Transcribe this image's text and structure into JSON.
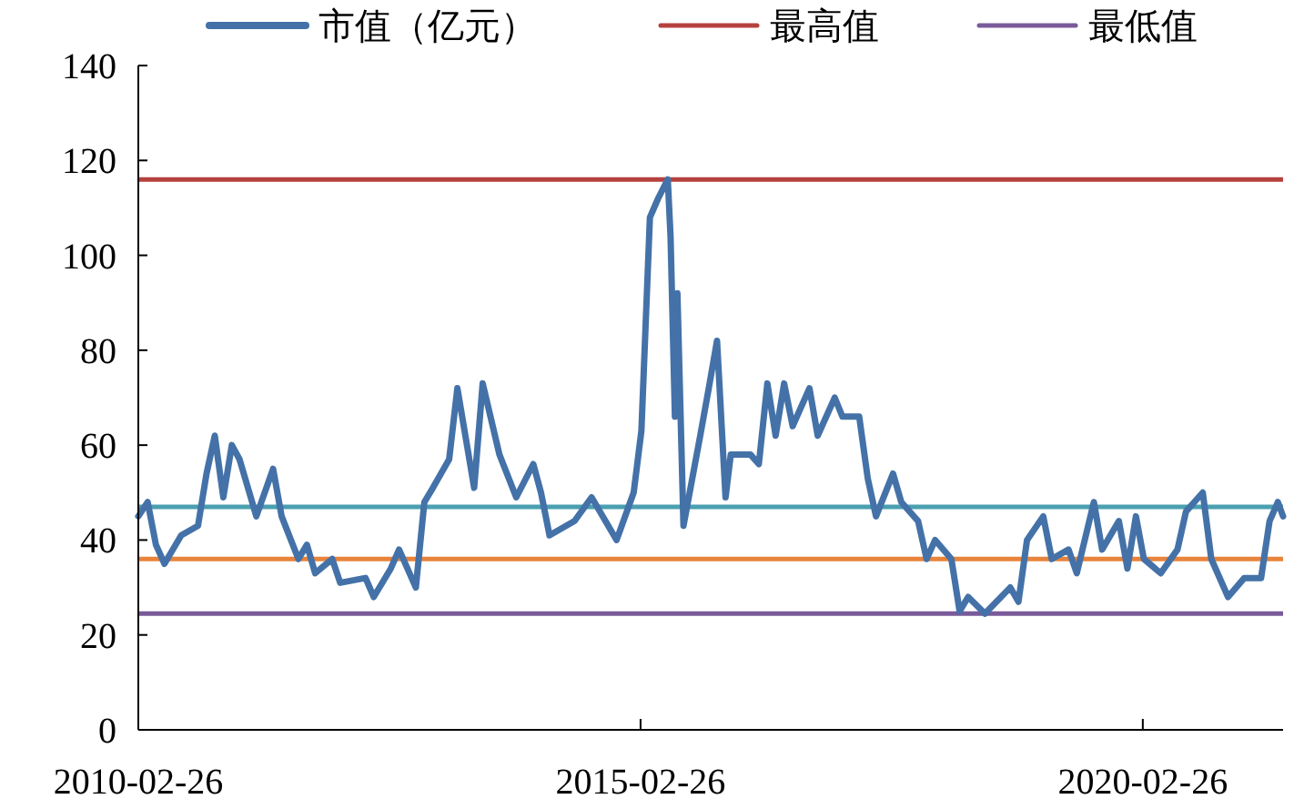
{
  "chart_data": {
    "type": "line",
    "x": [
      "2010-02-26",
      "2010-04",
      "2010-05",
      "2010-06",
      "2010-08",
      "2010-10",
      "2010-11",
      "2010-12",
      "2011-01",
      "2011-02",
      "2011-03",
      "2011-05",
      "2011-07",
      "2011-08",
      "2011-10",
      "2011-11",
      "2011-12",
      "2012-02",
      "2012-03",
      "2012-06",
      "2012-07",
      "2012-09",
      "2012-10",
      "2012-12",
      "2013-01",
      "2013-02",
      "2013-04",
      "2013-05",
      "2013-07",
      "2013-08",
      "2013-10",
      "2013-12",
      "2014-02",
      "2014-03",
      "2014-04",
      "2014-07",
      "2014-09",
      "2014-12",
      "2015-02",
      "2015-03",
      "2015-04",
      "2015-05",
      "2015-06-05",
      "2015-06-15",
      "2015-07-01",
      "2015-07-10",
      "2015-08",
      "2015-10",
      "2015-11",
      "2015-12",
      "2016-01",
      "2016-01-20",
      "2016-04",
      "2016-05",
      "2016-06",
      "2016-07",
      "2016-08",
      "2016-09",
      "2016-11",
      "2016-12",
      "2017-02",
      "2017-03",
      "2017-05",
      "2017-06",
      "2017-07",
      "2017-09",
      "2017-10",
      "2017-12",
      "2018-01",
      "2018-02",
      "2018-04",
      "2018-05",
      "2018-06",
      "2018-08",
      "2018-11",
      "2018-12",
      "2019-01",
      "2019-03",
      "2019-04",
      "2019-06",
      "2019-07",
      "2019-09",
      "2019-10",
      "2019-12",
      "2020-01",
      "2020-02",
      "2020-03",
      "2020-05",
      "2020-07",
      "2020-08",
      "2020-10",
      "2020-11",
      "2021-01",
      "2021-03",
      "2021-05",
      "2021-06",
      "2021-07-01",
      "2021-07-20"
    ],
    "series": [
      {
        "name": "市值（亿元）",
        "color": "#4472a8",
        "values": [
          45,
          48,
          39,
          35,
          41,
          43,
          54,
          62,
          49,
          60,
          57,
          45,
          55,
          45,
          36,
          39,
          33,
          36,
          31,
          32,
          28,
          34,
          38,
          30,
          48,
          51,
          57,
          72,
          51,
          73,
          58,
          49,
          56,
          50,
          41,
          44,
          49,
          40,
          50,
          63,
          108,
          112,
          116,
          104,
          66,
          92,
          43,
          62,
          72,
          82,
          49,
          58,
          58,
          56,
          73,
          62,
          73,
          64,
          72,
          62,
          70,
          66,
          66,
          53,
          45,
          54,
          48,
          44,
          36,
          40,
          36,
          25,
          28,
          24.5,
          30,
          27,
          40,
          45,
          36,
          38,
          33,
          48,
          38,
          44,
          34,
          45,
          36,
          33,
          38,
          46,
          50,
          36,
          28,
          32,
          32,
          44,
          48,
          45
        ]
      }
    ],
    "ref_lines": [
      {
        "axis": "y",
        "value": 116,
        "label": "最高值",
        "color": "#b5413e"
      },
      {
        "axis": "y",
        "value": 24.5,
        "label": "最低值",
        "color": "#7a5a9a"
      },
      {
        "axis": "y",
        "value": 47,
        "color": "#4aa0b0"
      },
      {
        "axis": "y",
        "value": 36,
        "color": "#e8843c"
      }
    ],
    "xlim": [
      "2010-02-26",
      "2021-07-20"
    ],
    "xticks": [
      {
        "value": "2010-02-26",
        "label": "2010-02-26"
      },
      {
        "value": "2015-02-26",
        "label": "2015-02-26"
      },
      {
        "value": "2020-02-26",
        "label": "2020-02-26"
      }
    ],
    "ylim": [
      0,
      140
    ],
    "yticks": [
      0,
      20,
      40,
      60,
      80,
      100,
      120,
      140
    ],
    "grid": false,
    "legend": "top",
    "line_style": "solid"
  }
}
